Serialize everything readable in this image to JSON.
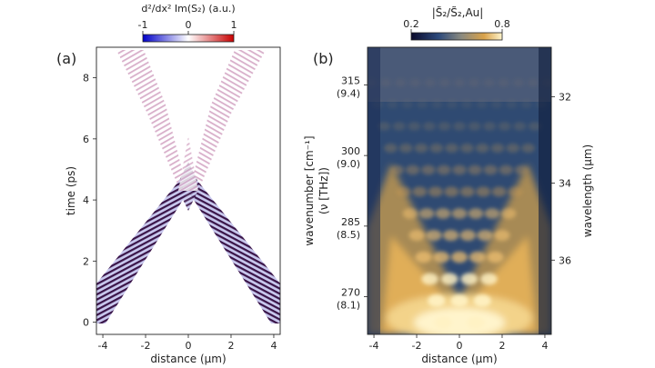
{
  "chart_data": [
    {
      "type": "heatmap",
      "panel_label": "(a)",
      "colorbar": {
        "title": "d²/dx² Im(S₂) (a.u.)",
        "ticks": [
          "-1",
          "0",
          "1"
        ],
        "range": [
          -1,
          1
        ],
        "colors": [
          "#0000c8",
          "#ffffff",
          "#c80000"
        ]
      },
      "xlabel": "distance (μm)",
      "ylabel": "time (ps)",
      "xlim": [
        -4.3,
        4.3
      ],
      "ylim": [
        -0.4,
        9.0
      ],
      "xticks": [
        "-4",
        "-2",
        "0",
        "2",
        "4"
      ],
      "yticks": [
        "0",
        "2",
        "4",
        "6",
        "8"
      ],
      "features": {
        "crossing_point": {
          "x": 0,
          "time_ps": 4.3
        },
        "branches": "two oscillating wave packets traveling from x=±4.2 μm at t=0 toward x=0 near t≈4.3 ps, then spreading outward with decaying amplitude up to ~8.5 ps"
      }
    },
    {
      "type": "heatmap",
      "panel_label": "(b)",
      "colorbar": {
        "title": "|S̃₂/S̃₂,Au|",
        "ticks": [
          "0.2",
          "0.8"
        ],
        "range": [
          0.2,
          0.8
        ],
        "colors": [
          "#0a0a2a",
          "#2d4a7c",
          "#8a8a80",
          "#d9a24a",
          "#fff4cc"
        ]
      },
      "xlabel": "distance (μm)",
      "ylabel_left": "wavenumber [cm⁻¹]",
      "ylabel_left_sub": "(ν [THz])",
      "ylabel_right": "wavelength (μm)",
      "xlim": [
        -4.3,
        4.3
      ],
      "ylim": [
        262,
        323
      ],
      "xticks": [
        "-4",
        "-2",
        "0",
        "2",
        "4"
      ],
      "yticks_left": [
        {
          "wavenumber": 315,
          "label": "315",
          "sub": "(9.4)"
        },
        {
          "wavenumber": 300,
          "label": "300",
          "sub": "(9.0)"
        },
        {
          "wavenumber": 285,
          "label": "285",
          "sub": "(8.5)"
        },
        {
          "wavenumber": 270,
          "label": "270",
          "sub": "(8.1)"
        }
      ],
      "yticks_right": [
        {
          "wavelength": 32,
          "label": "32"
        },
        {
          "wavelength": 34,
          "label": "34"
        },
        {
          "wavelength": 36,
          "label": "36"
        }
      ],
      "features": {
        "pattern": "V-shaped checkerboard of bright and dark interference maxima, brightest near the bottom center (~265–270 cm⁻¹), narrowing toward x=0 at lower wavenumbers"
      }
    }
  ]
}
